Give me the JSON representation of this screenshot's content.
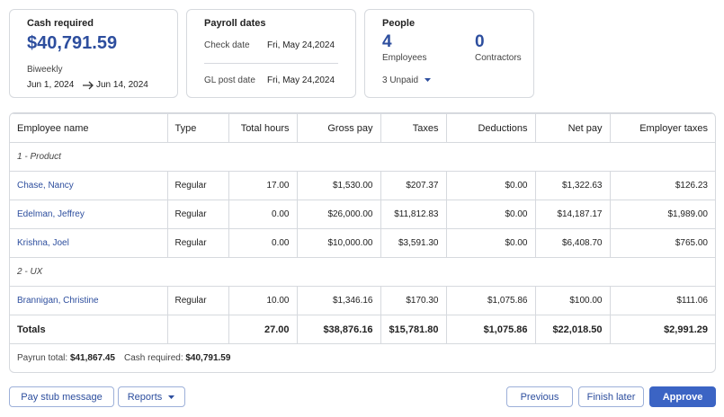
{
  "cards": {
    "cash": {
      "title": "Cash required",
      "amount": "$40,791.59",
      "frequency": "Biweekly",
      "start": "Jun 1, 2024",
      "end": "Jun 14, 2024"
    },
    "payroll_dates": {
      "title": "Payroll dates",
      "rows": [
        {
          "label": "Check date",
          "value": "Fri, May 24,2024"
        },
        {
          "label": "GL post date",
          "value": "Fri, May 24,2024"
        }
      ]
    },
    "people": {
      "title": "People",
      "stats": [
        {
          "value": "4",
          "label": "Employees"
        },
        {
          "value": "0",
          "label": "Contractors"
        }
      ],
      "unpaid": "3 Unpaid"
    }
  },
  "table": {
    "columns": [
      "Employee name",
      "Type",
      "Total hours",
      "Gross pay",
      "Taxes",
      "Deductions",
      "Net pay",
      "Employer taxes"
    ],
    "groups": [
      {
        "name": "1 - Product",
        "rows": [
          [
            "Chase, Nancy",
            "Regular",
            "17.00",
            "$1,530.00",
            "$207.37",
            "$0.00",
            "$1,322.63",
            "$126.23"
          ],
          [
            "Edelman, Jeffrey",
            "Regular",
            "0.00",
            "$26,000.00",
            "$11,812.83",
            "$0.00",
            "$14,187.17",
            "$1,989.00"
          ],
          [
            "Krishna, Joel",
            "Regular",
            "0.00",
            "$10,000.00",
            "$3,591.30",
            "$0.00",
            "$6,408.70",
            "$765.00"
          ]
        ]
      },
      {
        "name": "2 - UX",
        "rows": [
          [
            "Brannigan, Christine",
            "Regular",
            "10.00",
            "$1,346.16",
            "$170.30",
            "$1,075.86",
            "$100.00",
            "$111.06"
          ]
        ]
      }
    ],
    "totals": [
      "Totals",
      "",
      "27.00",
      "$38,876.16",
      "$15,781.80",
      "$1,075.86",
      "$22,018.50",
      "$2,991.29"
    ],
    "footer": [
      {
        "label": "Payrun total:",
        "value": "$41,867.45"
      },
      {
        "label": "Cash required:",
        "value": "$40,791.59"
      }
    ]
  },
  "buttons": {
    "left": [
      "Pay stub message",
      "Reports"
    ],
    "right": [
      "Previous",
      "Finish later",
      "Approve"
    ]
  }
}
